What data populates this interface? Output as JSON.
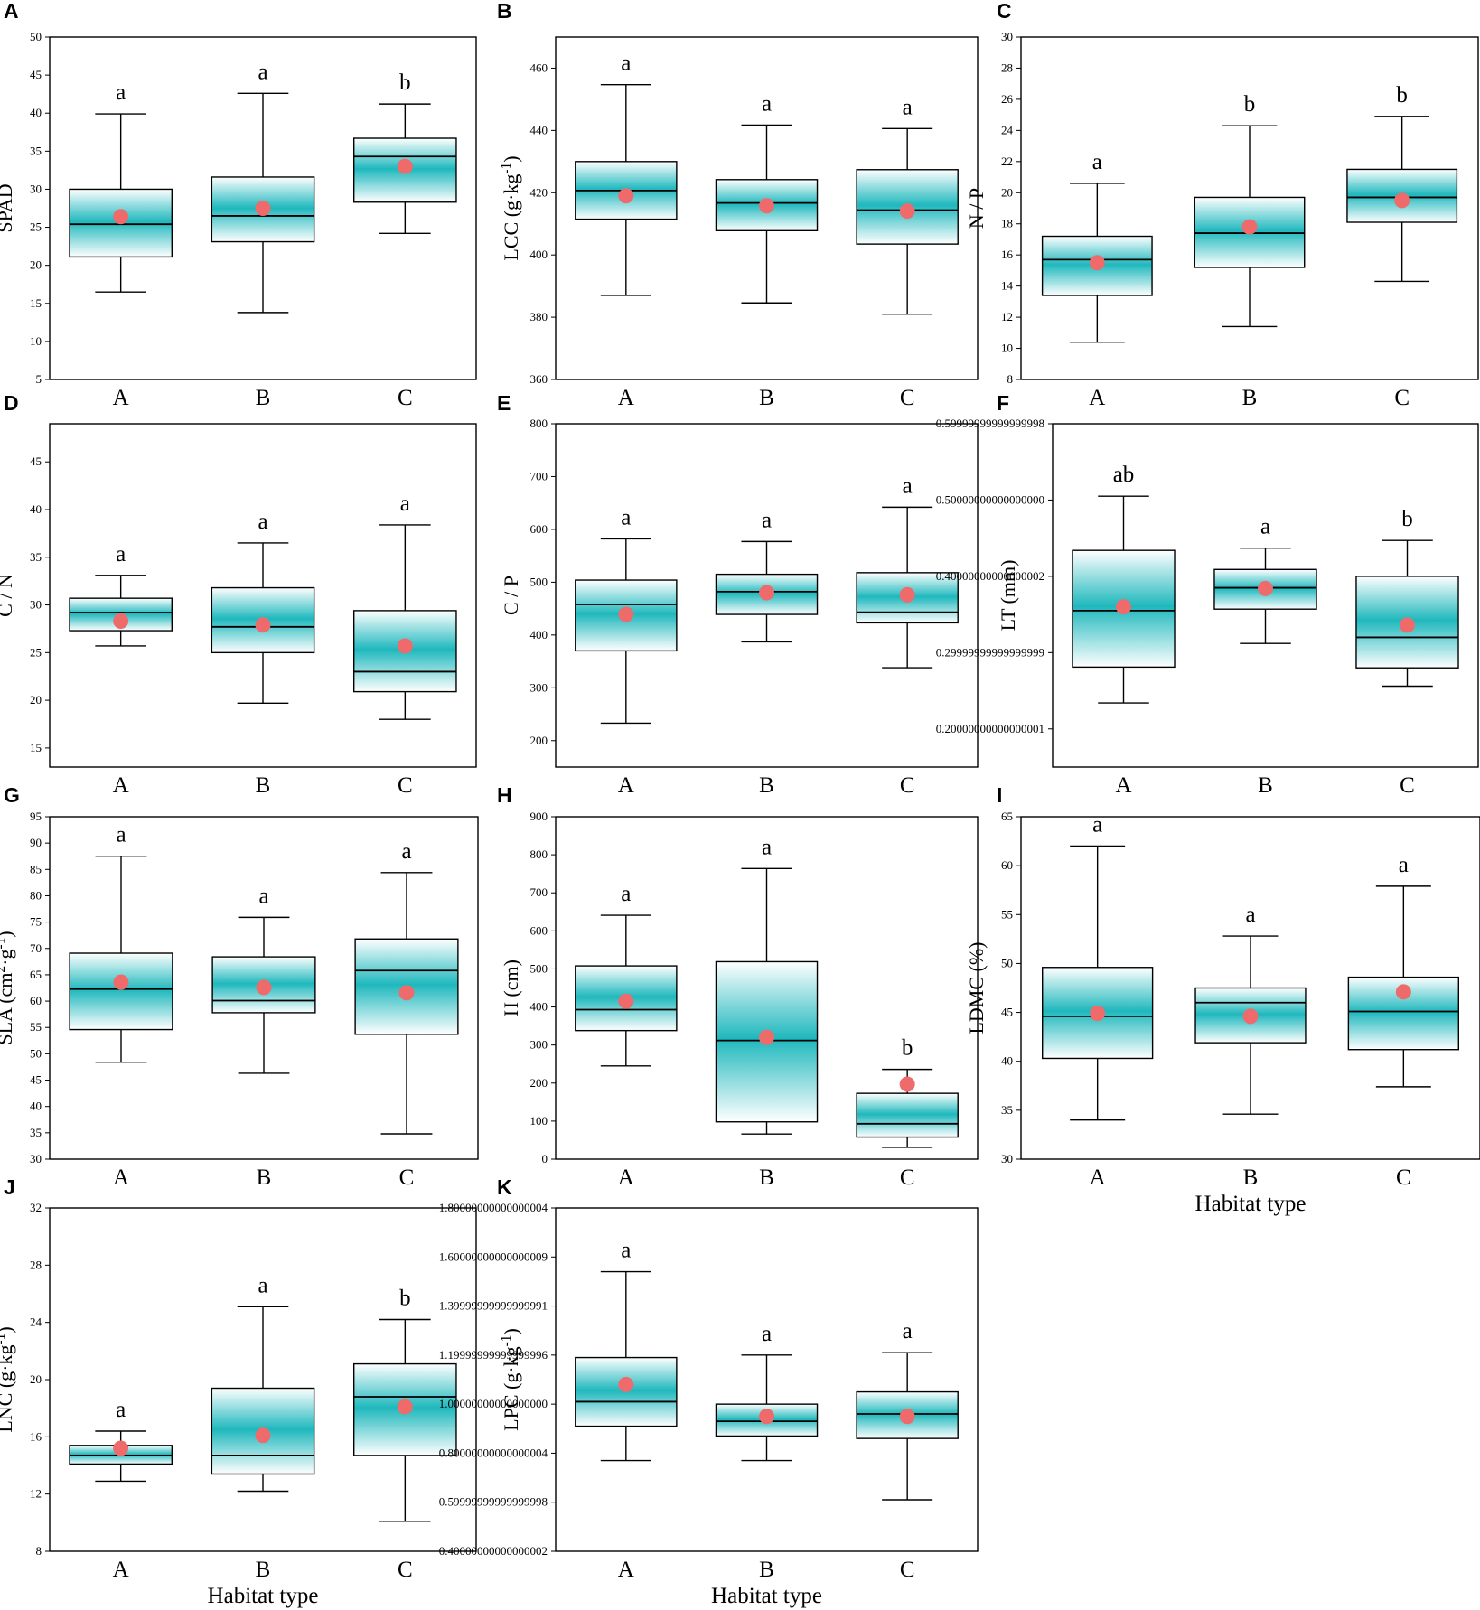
{
  "figure": {
    "x_categories": [
      "A",
      "B",
      "C"
    ],
    "x_title": "Habitat type",
    "colors": {
      "gradient_center": "#1fb8bd",
      "gradient_edge": "#ffffff",
      "mean_marker": "#ef6b6b",
      "ink": "#000000"
    }
  },
  "chart_data": [
    {
      "panel": "A",
      "type": "box",
      "ylabel": "SPAD",
      "ylim": [
        5,
        50
      ],
      "yticks": [
        5,
        10,
        15,
        20,
        25,
        30,
        35,
        40,
        45,
        50
      ],
      "show_xtitle": false,
      "categories": [
        "A",
        "B",
        "C"
      ],
      "boxes": [
        {
          "whislo": 16.5,
          "q1": 21.1,
          "med": 25.4,
          "q3": 30.0,
          "whishi": 39.9,
          "mean": 26.4,
          "letter": "a"
        },
        {
          "whislo": 13.8,
          "q1": 23.1,
          "med": 26.5,
          "q3": 31.6,
          "whishi": 42.6,
          "mean": 27.5,
          "letter": "a"
        },
        {
          "whislo": 24.2,
          "q1": 28.3,
          "med": 34.3,
          "q3": 36.7,
          "whishi": 41.2,
          "mean": 33.0,
          "letter": "b"
        }
      ]
    },
    {
      "panel": "B",
      "type": "box",
      "ylabel": "LCC (g·kg⁻¹)",
      "ylim": [
        360,
        470
      ],
      "yticks": [
        360,
        380,
        400,
        420,
        440,
        460
      ],
      "show_xtitle": false,
      "categories": [
        "A",
        "B",
        "C"
      ],
      "boxes": [
        {
          "whislo": 387,
          "q1": 411.5,
          "med": 420.7,
          "q3": 430.0,
          "whishi": 454.7,
          "mean": 419.0,
          "letter": "a"
        },
        {
          "whislo": 384.6,
          "q1": 407.8,
          "med": 416.7,
          "q3": 424.2,
          "whishi": 441.7,
          "mean": 415.8,
          "letter": "a"
        },
        {
          "whislo": 381.0,
          "q1": 403.5,
          "med": 414.4,
          "q3": 427.4,
          "whishi": 440.6,
          "mean": 414.1,
          "letter": "a"
        }
      ]
    },
    {
      "panel": "C",
      "type": "box",
      "ylabel": "N / P",
      "ylim": [
        8,
        30
      ],
      "yticks": [
        8,
        10,
        12,
        14,
        16,
        18,
        20,
        22,
        24,
        26,
        28,
        30
      ],
      "show_xtitle": false,
      "categories": [
        "A",
        "B",
        "C"
      ],
      "boxes": [
        {
          "whislo": 10.4,
          "q1": 13.4,
          "med": 15.7,
          "q3": 17.2,
          "whishi": 20.6,
          "mean": 15.5,
          "letter": "a"
        },
        {
          "whislo": 11.4,
          "q1": 15.2,
          "med": 17.4,
          "q3": 19.7,
          "whishi": 24.3,
          "mean": 17.8,
          "letter": "b"
        },
        {
          "whislo": 14.3,
          "q1": 18.1,
          "med": 19.7,
          "q3": 21.5,
          "whishi": 24.9,
          "mean": 19.5,
          "letter": "b"
        }
      ]
    },
    {
      "panel": "D",
      "type": "box",
      "ylabel": "C / N",
      "ylim": [
        13,
        49
      ],
      "yticks": [
        15,
        20,
        25,
        30,
        35,
        40,
        45
      ],
      "show_xtitle": false,
      "categories": [
        "A",
        "B",
        "C"
      ],
      "boxes": [
        {
          "whislo": 25.7,
          "q1": 27.3,
          "med": 29.2,
          "q3": 30.7,
          "whishi": 33.1,
          "mean": 28.3,
          "letter": "a"
        },
        {
          "whislo": 19.7,
          "q1": 25.0,
          "med": 27.7,
          "q3": 31.8,
          "whishi": 36.5,
          "mean": 27.9,
          "letter": "a"
        },
        {
          "whislo": 18.0,
          "q1": 20.9,
          "med": 23.0,
          "q3": 29.4,
          "whishi": 38.4,
          "mean": 25.7,
          "letter": "a"
        }
      ]
    },
    {
      "panel": "E",
      "type": "box",
      "ylabel": "C / P",
      "ylim": [
        150,
        800
      ],
      "yticks": [
        200,
        300,
        400,
        500,
        600,
        700,
        800
      ],
      "show_xtitle": false,
      "categories": [
        "A",
        "B",
        "C"
      ],
      "boxes": [
        {
          "whislo": 233,
          "q1": 370,
          "med": 458,
          "q3": 504,
          "whishi": 582,
          "mean": 439,
          "letter": "a"
        },
        {
          "whislo": 387,
          "q1": 439,
          "med": 482,
          "q3": 515,
          "whishi": 577,
          "mean": 480,
          "letter": "a"
        },
        {
          "whislo": 338,
          "q1": 423,
          "med": 443,
          "q3": 518,
          "whishi": 642,
          "mean": 476,
          "letter": "a"
        }
      ]
    },
    {
      "panel": "F",
      "type": "box",
      "ylabel": "LT (mm)",
      "ylim": [
        0.15,
        0.6
      ],
      "yticks": [
        0.2,
        0.3,
        0.4,
        0.5,
        0.6
      ],
      "show_xtitle": false,
      "categories": [
        "A",
        "B",
        "C"
      ],
      "boxes": [
        {
          "whislo": 0.234,
          "q1": 0.281,
          "med": 0.355,
          "q3": 0.434,
          "whishi": 0.505,
          "mean": 0.36,
          "letter": "ab"
        },
        {
          "whislo": 0.312,
          "q1": 0.357,
          "med": 0.385,
          "q3": 0.409,
          "whishi": 0.437,
          "mean": 0.384,
          "letter": "a"
        },
        {
          "whislo": 0.256,
          "q1": 0.28,
          "med": 0.32,
          "q3": 0.4,
          "whishi": 0.447,
          "mean": 0.336,
          "letter": "b"
        }
      ]
    },
    {
      "panel": "G",
      "type": "box",
      "ylabel": "SLA (cm²·g⁻¹)",
      "ylim": [
        30,
        95
      ],
      "yticks": [
        30,
        35,
        40,
        45,
        50,
        55,
        60,
        65,
        70,
        75,
        80,
        85,
        90,
        95
      ],
      "show_xtitle": false,
      "categories": [
        "A",
        "B",
        "C"
      ],
      "boxes": [
        {
          "whislo": 48.4,
          "q1": 54.6,
          "med": 62.3,
          "q3": 69.1,
          "whishi": 87.5,
          "mean": 63.6,
          "letter": "a"
        },
        {
          "whislo": 46.3,
          "q1": 57.8,
          "med": 60.1,
          "q3": 68.4,
          "whishi": 75.9,
          "mean": 62.6,
          "letter": "a"
        },
        {
          "whislo": 34.8,
          "q1": 53.7,
          "med": 65.8,
          "q3": 71.8,
          "whishi": 84.4,
          "mean": 61.6,
          "letter": "a"
        }
      ]
    },
    {
      "panel": "H",
      "type": "box",
      "ylabel": "H (cm)",
      "ylim": [
        0,
        900
      ],
      "yticks": [
        0,
        100,
        200,
        300,
        400,
        500,
        600,
        700,
        800,
        900
      ],
      "show_xtitle": false,
      "categories": [
        "A",
        "B",
        "C"
      ],
      "boxes": [
        {
          "whislo": 245,
          "q1": 338,
          "med": 393,
          "q3": 508,
          "whishi": 641,
          "mean": 415,
          "letter": "a"
        },
        {
          "whislo": 66,
          "q1": 98,
          "med": 312,
          "q3": 519,
          "whishi": 764,
          "mean": 320,
          "letter": "a"
        },
        {
          "whislo": 31,
          "q1": 58,
          "med": 93,
          "q3": 173,
          "whishi": 236,
          "mean": 197,
          "letter": "b"
        }
      ]
    },
    {
      "panel": "I",
      "type": "box",
      "ylabel": "LDMC (%)",
      "ylim": [
        30,
        65
      ],
      "yticks": [
        30,
        35,
        40,
        45,
        50,
        55,
        60,
        65
      ],
      "show_xtitle": true,
      "categories": [
        "A",
        "B",
        "C"
      ],
      "boxes": [
        {
          "whislo": 34.0,
          "q1": 40.3,
          "med": 44.6,
          "q3": 49.6,
          "whishi": 62.0,
          "mean": 44.9,
          "letter": "a"
        },
        {
          "whislo": 34.6,
          "q1": 41.9,
          "med": 46.0,
          "q3": 47.5,
          "whishi": 52.8,
          "mean": 44.6,
          "letter": "a"
        },
        {
          "whislo": 37.4,
          "q1": 41.2,
          "med": 45.1,
          "q3": 48.6,
          "whishi": 57.9,
          "mean": 47.1,
          "letter": "a"
        }
      ]
    },
    {
      "panel": "J",
      "type": "box",
      "ylabel": "LNC (g·kg⁻¹)",
      "ylim": [
        8,
        32
      ],
      "yticks": [
        8,
        12,
        16,
        20,
        24,
        28,
        32
      ],
      "show_xtitle": true,
      "categories": [
        "A",
        "B",
        "C"
      ],
      "boxes": [
        {
          "whislo": 12.9,
          "q1": 14.1,
          "med": 14.7,
          "q3": 15.4,
          "whishi": 16.4,
          "mean": 15.2,
          "letter": "a"
        },
        {
          "whislo": 12.2,
          "q1": 13.4,
          "med": 14.7,
          "q3": 19.4,
          "whishi": 25.1,
          "mean": 16.1,
          "letter": "a"
        },
        {
          "whislo": 10.1,
          "q1": 14.7,
          "med": 18.8,
          "q3": 21.1,
          "whishi": 24.2,
          "mean": 18.1,
          "letter": "b"
        }
      ]
    },
    {
      "panel": "K",
      "type": "box",
      "ylabel": "LPC (g·kg⁻¹)",
      "ylim": [
        0.4,
        1.8
      ],
      "yticks": [
        0.4,
        0.6,
        0.8,
        1.0,
        1.2,
        1.4,
        1.6,
        1.8
      ],
      "show_xtitle": true,
      "categories": [
        "A",
        "B",
        "C"
      ],
      "boxes": [
        {
          "whislo": 0.77,
          "q1": 0.91,
          "med": 1.01,
          "q3": 1.19,
          "whishi": 1.54,
          "mean": 1.08,
          "letter": "a"
        },
        {
          "whislo": 0.77,
          "q1": 0.87,
          "med": 0.93,
          "q3": 1.0,
          "whishi": 1.2,
          "mean": 0.95,
          "letter": "a"
        },
        {
          "whislo": 0.61,
          "q1": 0.86,
          "med": 0.96,
          "q3": 1.05,
          "whishi": 1.21,
          "mean": 0.95,
          "letter": "a"
        }
      ]
    }
  ]
}
